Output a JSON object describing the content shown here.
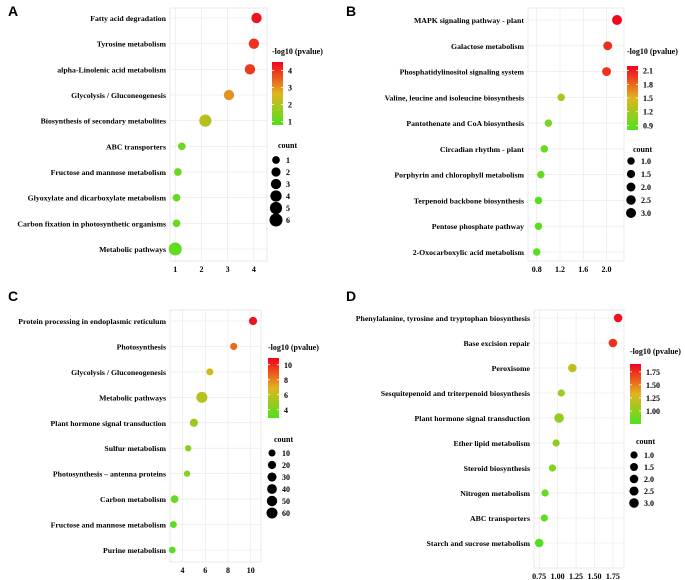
{
  "chart_data": [
    {
      "type": "scatter",
      "panel": "A",
      "title": "",
      "xlabel": "",
      "ylabel": "",
      "xlim": [
        0.8,
        4.5
      ],
      "xticks": [
        1,
        2,
        3,
        4
      ],
      "x_tick_labels": [
        "1",
        "2",
        "3",
        "4"
      ],
      "categories": [
        "Fatty acid degradation",
        "Tyrosine metabolism",
        "alpha-Linolenic acid metabolism",
        "Glycolysis / Gluconeogenesis",
        "Biosynthesis of secondary metabolites",
        "ABC transporters",
        "Fructose and mannose metabolism",
        "Glyoxylate and dicarboxylate metabolism",
        "Carbon fixation in photosynthetic organisms",
        "Metabolic pathways"
      ],
      "x": [
        4.1,
        4.0,
        3.85,
        3.05,
        2.15,
        1.25,
        1.1,
        1.05,
        1.05,
        1.0
      ],
      "count": [
        3,
        3,
        3,
        3,
        5,
        1,
        1,
        1,
        1,
        6
      ],
      "pvalue": [
        4.3,
        4.0,
        3.9,
        3.0,
        2.1,
        1.2,
        1.1,
        1.1,
        1.1,
        1.0
      ],
      "color_legend": {
        "title": "-log10 (pvalue)",
        "min": 0.8,
        "max": 4.5,
        "ticks": [
          4,
          3,
          2,
          1
        ],
        "tick_labels": [
          "4",
          "3",
          "2",
          "1"
        ]
      },
      "size_legend": {
        "title": "count",
        "max": 6,
        "values": [
          1,
          2,
          3,
          4,
          5,
          6
        ],
        "labels": [
          "1",
          "2",
          "3",
          "4",
          "5",
          "6"
        ]
      },
      "grid": true
    },
    {
      "type": "scatter",
      "panel": "B",
      "title": "",
      "xlabel": "",
      "ylabel": "",
      "xlim": [
        0.65,
        2.3
      ],
      "xticks": [
        0.8,
        1.2,
        1.6,
        2.0
      ],
      "x_tick_labels": [
        "0.8",
        "1.2",
        "1.6",
        "2.0"
      ],
      "categories": [
        "MAPK signaling pathway - plant",
        "Galactose metabolism",
        "Phosphatidylinositol signaling system",
        "Valine, leucine and isoleucine biosynthesis",
        "Pantothenate and CoA biosynthesis",
        "Circadian rhythm - plant",
        "Porphyrin and chlorophyll metabolism",
        "Terpenoid backbone biosynthesis",
        "Pentose phosphate pathway",
        "2-Oxocarboxylic acid metabolism"
      ],
      "x": [
        2.18,
        2.02,
        2.0,
        1.22,
        1.0,
        0.93,
        0.87,
        0.83,
        0.83,
        0.8
      ],
      "count": [
        3,
        2,
        2,
        1,
        1,
        1,
        1,
        1,
        1,
        1
      ],
      "pvalue": [
        2.18,
        2.02,
        2.0,
        1.22,
        1.0,
        0.93,
        0.87,
        0.83,
        0.83,
        0.8
      ],
      "color_legend": {
        "title": "-log10 (pvalue)",
        "min": 0.8,
        "max": 2.2,
        "ticks": [
          2.1,
          1.8,
          1.5,
          1.2,
          0.9
        ],
        "tick_labels": [
          "2.1",
          "1.8",
          "1.5",
          "1.2",
          "0.9"
        ]
      },
      "size_legend": {
        "title": "count",
        "max": 3,
        "values": [
          1.0,
          1.5,
          2.0,
          2.5,
          3.0
        ],
        "labels": [
          "1.0",
          "1.5",
          "2.0",
          "2.5",
          "3.0"
        ]
      },
      "grid": true
    },
    {
      "type": "scatter",
      "panel": "C",
      "title": "",
      "xlabel": "",
      "ylabel": "",
      "xlim": [
        2.9,
        10.9
      ],
      "xticks": [
        4,
        6,
        8,
        10
      ],
      "x_tick_labels": [
        "4",
        "6",
        "8",
        "10"
      ],
      "categories": [
        "Protein processing in endoplasmic reticulum",
        "Photosynthesis",
        "Glycolysis / Gluconeogenesis",
        "Metabolic pathways",
        "Plant hormone signal transduction",
        "Sulfur metabolism",
        "Photosynthesis – antenna proteins",
        "Carbon metabolism",
        "Fructose and mannose metabolism",
        "Purine metabolism"
      ],
      "x": [
        10.2,
        8.5,
        6.4,
        5.7,
        5.0,
        4.5,
        4.4,
        3.3,
        3.2,
        3.1
      ],
      "count": [
        20,
        10,
        10,
        60,
        20,
        5,
        5,
        15,
        8,
        8
      ],
      "pvalue": [
        10.5,
        8.5,
        6.4,
        5.7,
        5.0,
        4.5,
        4.4,
        3.3,
        3.2,
        3.1
      ],
      "color_legend": {
        "title": "-log10 (pvalue)",
        "min": 2.9,
        "max": 10.9,
        "ticks": [
          10,
          8,
          6,
          4
        ],
        "tick_labels": [
          "10",
          "8",
          "6",
          "4"
        ]
      },
      "size_legend": {
        "title": "count",
        "max": 60,
        "values": [
          10,
          20,
          30,
          40,
          50,
          60
        ],
        "labels": [
          "10",
          "20",
          "30",
          "40",
          "50",
          "60"
        ]
      },
      "grid": true
    },
    {
      "type": "scatter",
      "panel": "D",
      "title": "",
      "xlabel": "",
      "ylabel": "",
      "xlim": [
        0.68,
        1.9
      ],
      "xticks": [
        0.75,
        1.0,
        1.25,
        1.5,
        1.75
      ],
      "x_tick_labels": [
        "0.75",
        "1.00",
        "1.25",
        "1.50",
        "1.75"
      ],
      "categories": [
        "Phenylalanine, tyrosine and tryptophan biosynthesis",
        "Base excision repair",
        "Peroxisome",
        "Sesquitepenoid and triterpenoid biosynthesis",
        "Plant hormone signal transduction",
        "Ether lipid metabolism",
        "Steroid biosynthesis",
        "Nitrogen metabolism",
        "ABC transporters",
        "Starch and sucrose metabolism"
      ],
      "x": [
        1.82,
        1.75,
        1.2,
        1.05,
        1.02,
        0.98,
        0.93,
        0.83,
        0.82,
        0.75
      ],
      "count": [
        2,
        2,
        2,
        1,
        3,
        1,
        1,
        1,
        1,
        2
      ],
      "pvalue": [
        1.85,
        1.75,
        1.2,
        1.05,
        1.02,
        0.98,
        0.93,
        0.83,
        0.82,
        0.75
      ],
      "color_legend": {
        "title": "-log10 (pvalue)",
        "min": 0.75,
        "max": 1.9,
        "ticks": [
          1.75,
          1.5,
          1.25,
          1.0
        ],
        "tick_labels": [
          "1.75",
          "1.50",
          "1.25",
          "1.00"
        ]
      },
      "size_legend": {
        "title": "count",
        "max": 3,
        "values": [
          1.0,
          1.5,
          2.0,
          2.5,
          3.0
        ],
        "labels": [
          "1.0",
          "1.5",
          "2.0",
          "2.5",
          "3.0"
        ]
      },
      "grid": true
    }
  ]
}
